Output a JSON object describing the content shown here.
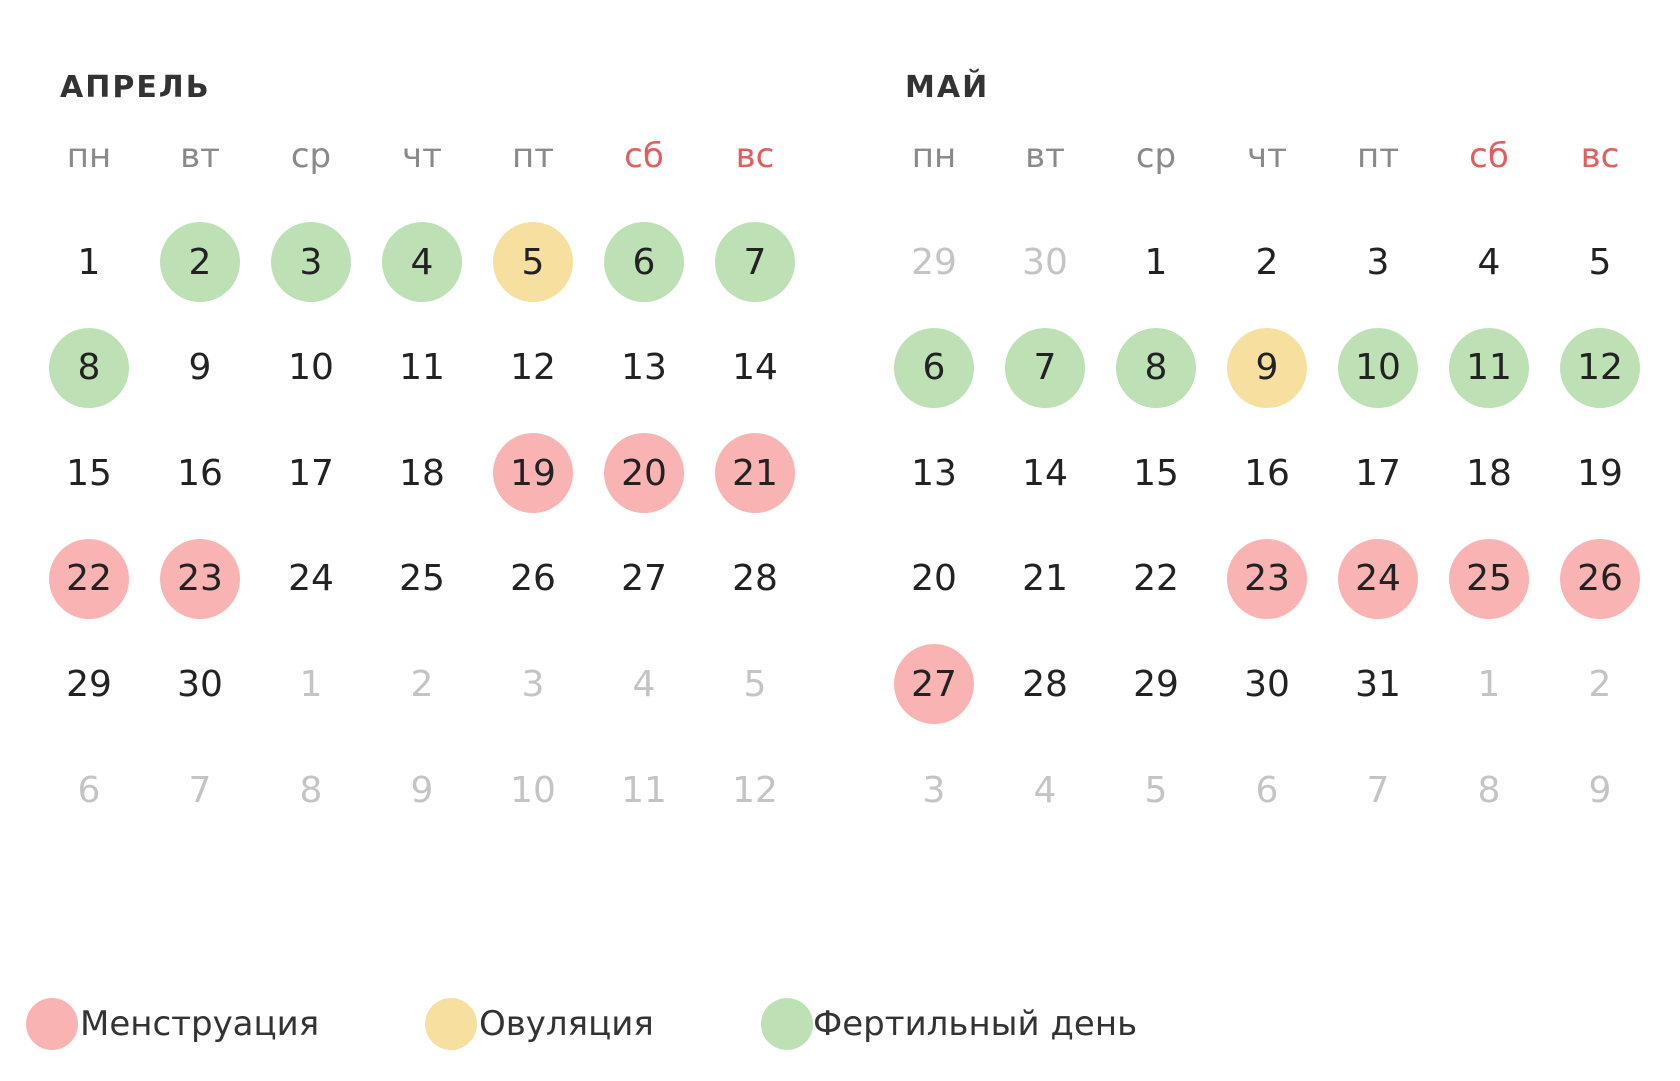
{
  "colors": {
    "menstruation": "#f9b3b3",
    "ovulation": "#f7dfa0",
    "fertile": "#bde0b5"
  },
  "months": [
    {
      "title": "АПРЕЛЬ",
      "weekdays": [
        "пн",
        "вт",
        "ср",
        "чт",
        "пт",
        "сб",
        "вс"
      ],
      "weeks": [
        [
          {
            "day": 1
          },
          {
            "day": 2,
            "mark": "fertile"
          },
          {
            "day": 3,
            "mark": "fertile"
          },
          {
            "day": 4,
            "mark": "fertile"
          },
          {
            "day": 5,
            "mark": "ovulation"
          },
          {
            "day": 6,
            "mark": "fertile"
          },
          {
            "day": 7,
            "mark": "fertile"
          }
        ],
        [
          {
            "day": 8,
            "mark": "fertile"
          },
          {
            "day": 9
          },
          {
            "day": 10
          },
          {
            "day": 11
          },
          {
            "day": 12
          },
          {
            "day": 13
          },
          {
            "day": 14
          }
        ],
        [
          {
            "day": 15
          },
          {
            "day": 16
          },
          {
            "day": 17
          },
          {
            "day": 18
          },
          {
            "day": 19,
            "mark": "menstruation"
          },
          {
            "day": 20,
            "mark": "menstruation"
          },
          {
            "day": 21,
            "mark": "menstruation"
          }
        ],
        [
          {
            "day": 22,
            "mark": "menstruation"
          },
          {
            "day": 23,
            "mark": "menstruation"
          },
          {
            "day": 24
          },
          {
            "day": 25
          },
          {
            "day": 26
          },
          {
            "day": 27
          },
          {
            "day": 28
          }
        ],
        [
          {
            "day": 29
          },
          {
            "day": 30
          },
          {
            "day": 1,
            "muted": true
          },
          {
            "day": 2,
            "muted": true
          },
          {
            "day": 3,
            "muted": true
          },
          {
            "day": 4,
            "muted": true
          },
          {
            "day": 5,
            "muted": true
          }
        ],
        [
          {
            "day": 6,
            "muted": true
          },
          {
            "day": 7,
            "muted": true
          },
          {
            "day": 8,
            "muted": true
          },
          {
            "day": 9,
            "muted": true
          },
          {
            "day": 10,
            "muted": true
          },
          {
            "day": 11,
            "muted": true
          },
          {
            "day": 12,
            "muted": true
          }
        ]
      ]
    },
    {
      "title": "МАЙ",
      "weekdays": [
        "пн",
        "вт",
        "ср",
        "чт",
        "пт",
        "сб",
        "вс"
      ],
      "weeks": [
        [
          {
            "day": 29,
            "muted": true
          },
          {
            "day": 30,
            "muted": true
          },
          {
            "day": 1
          },
          {
            "day": 2
          },
          {
            "day": 3
          },
          {
            "day": 4
          },
          {
            "day": 5
          }
        ],
        [
          {
            "day": 6,
            "mark": "fertile"
          },
          {
            "day": 7,
            "mark": "fertile"
          },
          {
            "day": 8,
            "mark": "fertile"
          },
          {
            "day": 9,
            "mark": "ovulation"
          },
          {
            "day": 10,
            "mark": "fertile"
          },
          {
            "day": 11,
            "mark": "fertile"
          },
          {
            "day": 12,
            "mark": "fertile"
          }
        ],
        [
          {
            "day": 13
          },
          {
            "day": 14
          },
          {
            "day": 15
          },
          {
            "day": 16
          },
          {
            "day": 17
          },
          {
            "day": 18
          },
          {
            "day": 19
          }
        ],
        [
          {
            "day": 20
          },
          {
            "day": 21
          },
          {
            "day": 22
          },
          {
            "day": 23,
            "mark": "menstruation"
          },
          {
            "day": 24,
            "mark": "menstruation"
          },
          {
            "day": 25,
            "mark": "menstruation"
          },
          {
            "day": 26,
            "mark": "menstruation"
          }
        ],
        [
          {
            "day": 27,
            "mark": "menstruation"
          },
          {
            "day": 28
          },
          {
            "day": 29
          },
          {
            "day": 30
          },
          {
            "day": 31
          },
          {
            "day": 1,
            "muted": true
          },
          {
            "day": 2,
            "muted": true
          }
        ],
        [
          {
            "day": 3,
            "muted": true
          },
          {
            "day": 4,
            "muted": true
          },
          {
            "day": 5,
            "muted": true
          },
          {
            "day": 6,
            "muted": true
          },
          {
            "day": 7,
            "muted": true
          },
          {
            "day": 8,
            "muted": true
          },
          {
            "day": 9,
            "muted": true
          }
        ]
      ]
    }
  ],
  "legend": [
    {
      "label": "Менструация",
      "kind": "menstruation"
    },
    {
      "label": "Овуляция",
      "kind": "ovulation"
    },
    {
      "label": "Фертильный день",
      "kind": "fertile"
    }
  ]
}
